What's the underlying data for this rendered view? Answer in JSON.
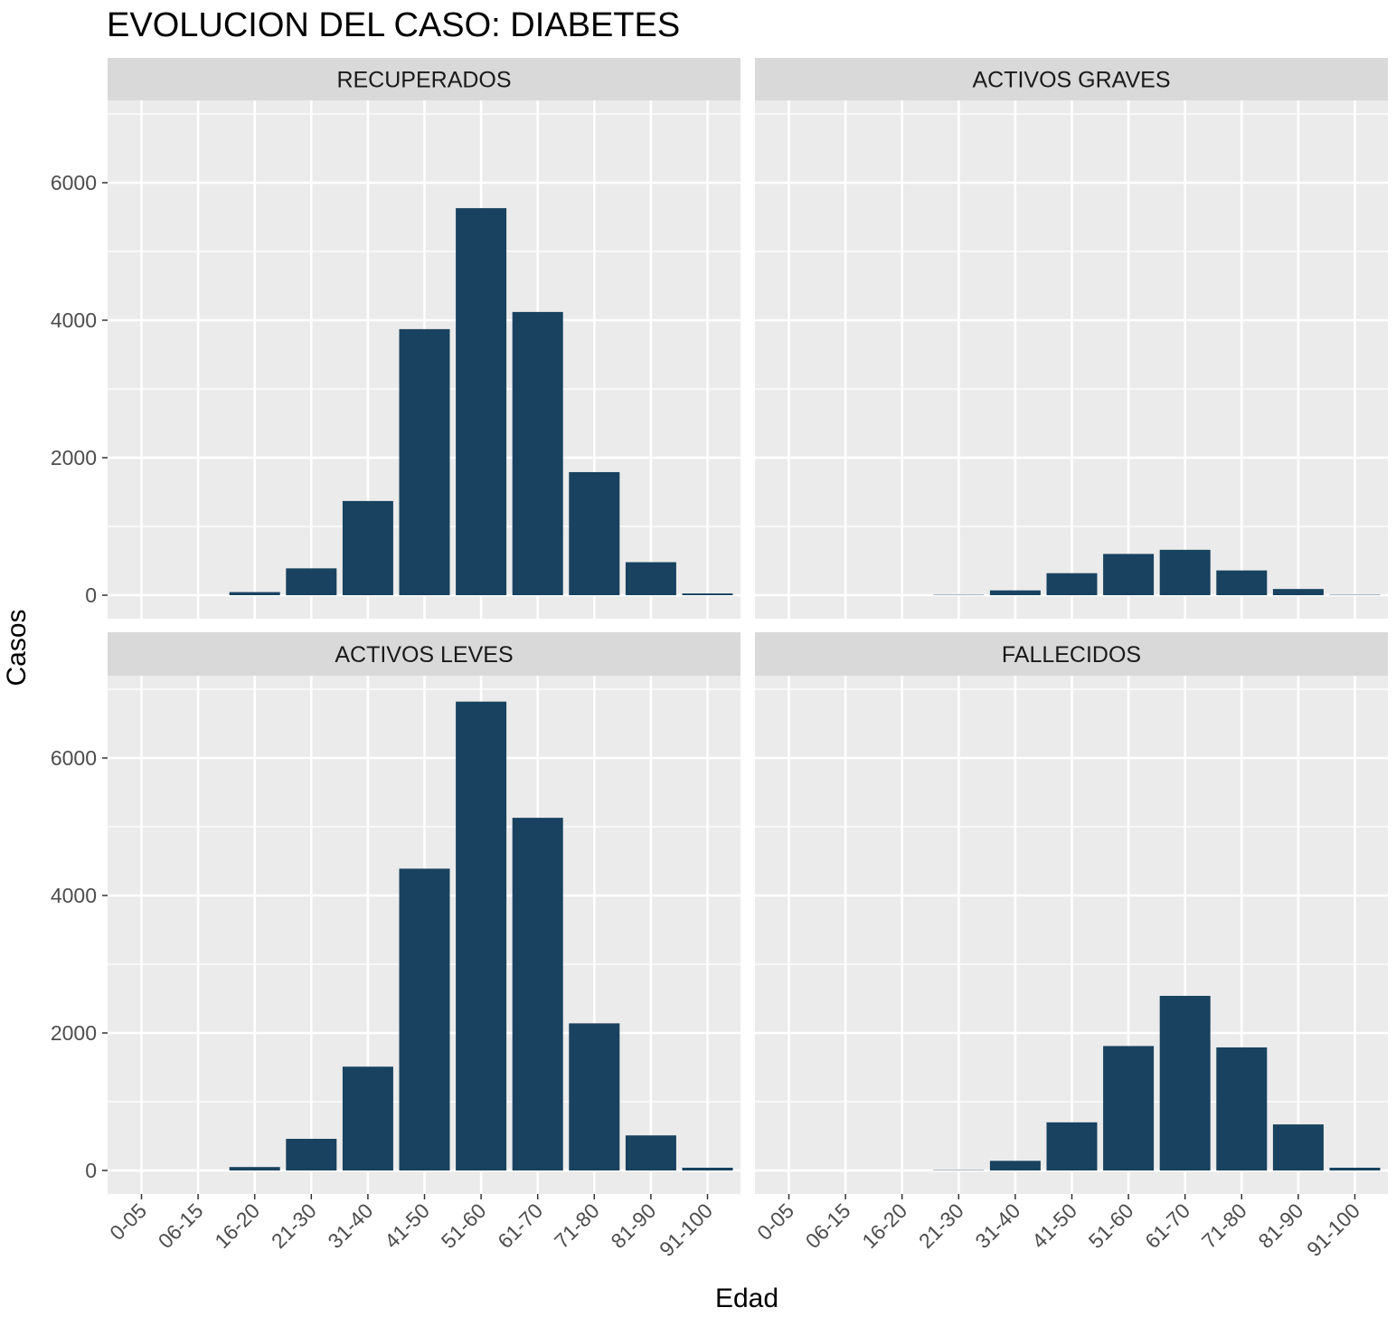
{
  "chart_data": {
    "type": "bar",
    "title": "EVOLUCION DEL CASO: DIABETES",
    "xlabel": "Edad",
    "ylabel": "Casos",
    "ylim": [
      0,
      7000
    ],
    "yticks": [
      0,
      2000,
      4000,
      6000
    ],
    "grid": true,
    "bar_color": "#18425f",
    "panel_background": "#ebebeb",
    "strip_background": "#d9d9d9",
    "categories": [
      "0-05",
      "06-15",
      "16-20",
      "21-30",
      "31-40",
      "41-50",
      "51-60",
      "61-70",
      "71-80",
      "81-90",
      "91-100"
    ],
    "panels": [
      {
        "name": "RECUPERADOS",
        "values": [
          0,
          0,
          45,
          390,
          1370,
          3870,
          5630,
          4120,
          1790,
          480,
          25
        ]
      },
      {
        "name": "ACTIVOS GRAVES",
        "values": [
          0,
          0,
          0,
          5,
          70,
          320,
          600,
          660,
          360,
          90,
          5
        ]
      },
      {
        "name": "ACTIVOS LEVES",
        "values": [
          0,
          0,
          50,
          460,
          1510,
          4390,
          6820,
          5130,
          2140,
          510,
          40
        ]
      },
      {
        "name": "FALLECIDOS",
        "values": [
          0,
          0,
          0,
          5,
          140,
          700,
          1810,
          2540,
          1790,
          670,
          40
        ]
      }
    ]
  }
}
